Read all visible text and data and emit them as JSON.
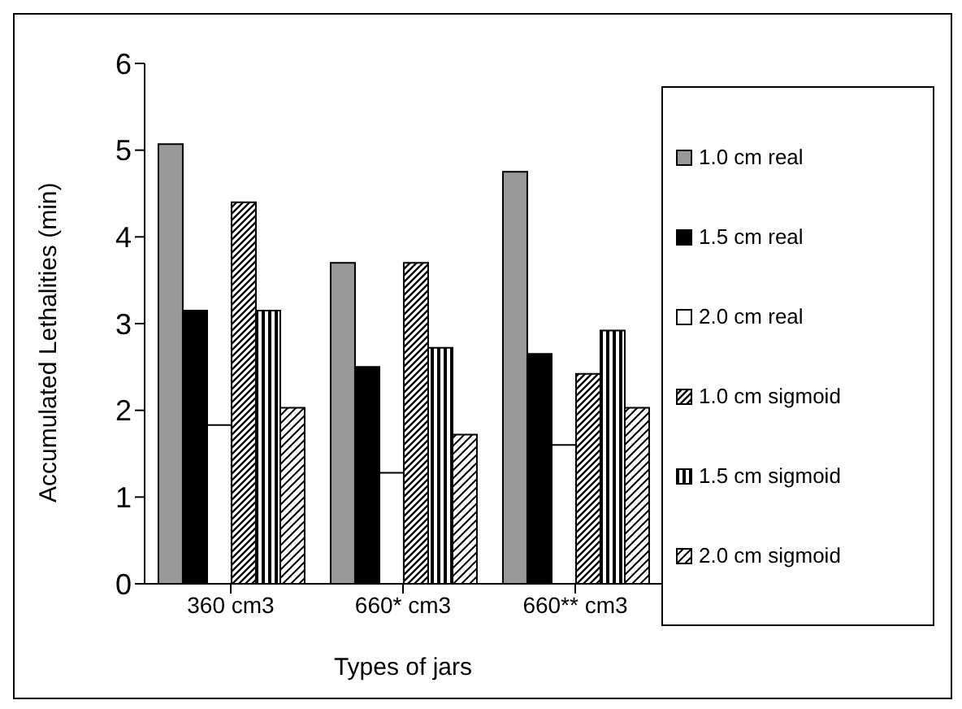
{
  "chart_data": {
    "type": "bar",
    "categories": [
      "360 cm3",
      "660* cm3",
      "660** cm3"
    ],
    "xlabel": "Types of jars",
    "ylabel": "Accumulated Lethalities (min)",
    "series": [
      {
        "name": "1.0 cm real",
        "color": "#999999",
        "values": [
          5.07,
          3.7,
          4.75
        ]
      },
      {
        "name": "1.5 cm real",
        "color": "#000000",
        "values": [
          3.15,
          2.5,
          2.65
        ]
      },
      {
        "name": "2.0 cm real",
        "color": "#ffffff",
        "values": [
          1.83,
          1.28,
          1.6
        ]
      },
      {
        "name": "1.0 cm sigmoid",
        "color": "#000000",
        "values": [
          4.4,
          3.7,
          2.42
        ]
      },
      {
        "name": "1.5 cm sigmoid",
        "color": "#000000",
        "values": [
          3.15,
          2.72,
          2.92
        ]
      },
      {
        "name": "2.0 cm sigmoid",
        "color": "#000000",
        "values": [
          2.03,
          1.72,
          2.03
        ]
      }
    ],
    "ylim": [
      0,
      6
    ],
    "yticks": [
      0,
      1,
      2,
      3,
      4,
      5,
      6
    ],
    "grid": false,
    "legend": "right"
  }
}
